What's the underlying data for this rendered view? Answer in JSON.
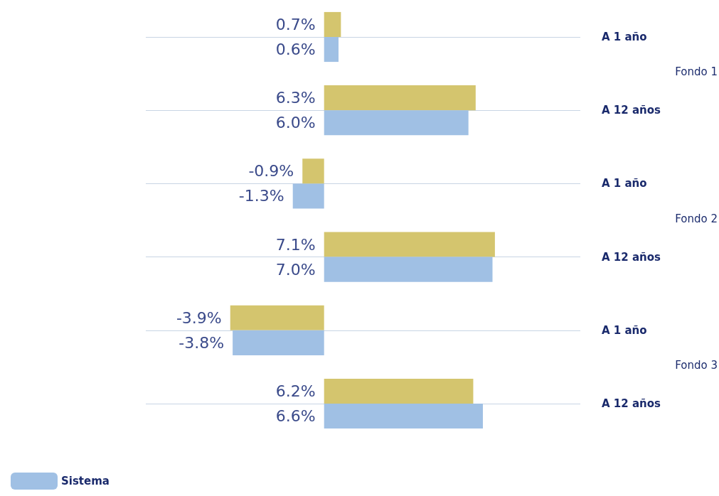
{
  "chart_data": {
    "type": "bar",
    "orientation": "horizontal",
    "categories": [
      "A 1 año",
      "A 12 años",
      "A 1 año",
      "A 12 años",
      "A 1 año",
      "A 12 años"
    ],
    "series": [
      {
        "color": "#d4c56e",
        "values": [
          0.7,
          6.3,
          -0.9,
          7.1,
          -3.9,
          6.2
        ],
        "value_labels": [
          "0.7%",
          "6.3%",
          "-0.9%",
          "7.1%",
          "-3.9%",
          "6.2%"
        ]
      },
      {
        "name": "Sistema",
        "color": "#a0c0e4",
        "values": [
          0.6,
          6.0,
          -1.3,
          7.0,
          -3.8,
          6.6
        ],
        "value_labels": [
          "0.6%",
          "6.0%",
          "-1.3%",
          "7.0%",
          "-3.8%",
          "6.6%"
        ]
      }
    ],
    "annotations": [
      "Fondo 1",
      "Fondo 2",
      "Fondo 3"
    ],
    "grid": "y",
    "legend": "bottom left"
  }
}
